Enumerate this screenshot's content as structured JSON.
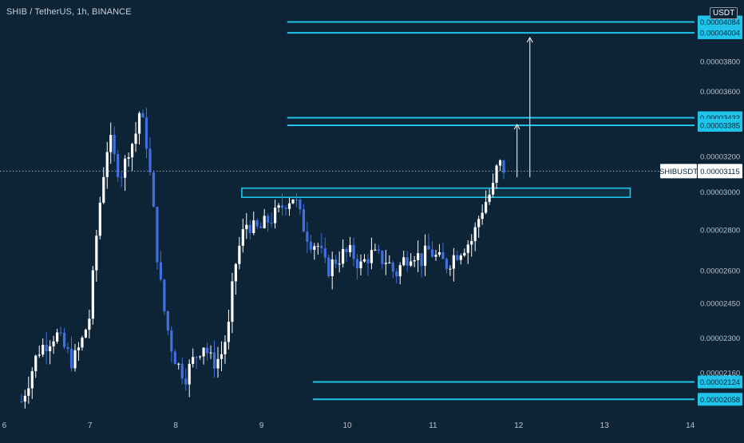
{
  "header": {
    "symbol_title": "SHIB / TetherUS, 1h, BINANCE",
    "currency": "USDT"
  },
  "colors": {
    "background": "#0c2436",
    "up_candle": "#ffffff",
    "down_candle": "#3f6fe0",
    "level_line": "#1fc4e8",
    "axis_text": "#b8c2cc",
    "arrow": "#ffffff"
  },
  "chart_data": {
    "type": "candlestick",
    "title": "SHIB / TetherUS, 1h, BINANCE",
    "x_tick_labels": [
      "6",
      "7",
      "8",
      "9",
      "10",
      "11",
      "12",
      "13",
      "14"
    ],
    "y_tick_labels": [
      "0.00002160",
      "0.00002300",
      "0.00002450",
      "0.00002600",
      "0.00002800",
      "0.00003000",
      "0.00003200",
      "0.00003600",
      "0.00003800"
    ],
    "y_tick_values": [
      2.16e-05,
      2.3e-05,
      2.45e-05,
      2.6e-05,
      2.8e-05,
      3e-05,
      3.2e-05,
      3.6e-05,
      3.8e-05
    ],
    "y_scale": "log",
    "ylim": [
      2e-05,
      4.25e-05
    ],
    "xlim": [
      5.95,
      14.05
    ],
    "current_price": {
      "symbol": "SHIBUSDT",
      "label": "0.00003115",
      "value": 3.115e-05
    },
    "horizontal_levels": [
      {
        "label": "0.00004084",
        "value": 4.084e-05,
        "x_start": 9.3
      },
      {
        "label": "0.00004004",
        "value": 4.004e-05,
        "x_start": 9.3
      },
      {
        "label": "0.00003432",
        "value": 3.432e-05,
        "x_start": 9.3
      },
      {
        "label": "0.00003385",
        "value": 3.385e-05,
        "x_start": 9.3
      },
      {
        "label": "0.00002124",
        "value": 2.124e-05,
        "x_start": 9.6
      },
      {
        "label": "0.00002058",
        "value": 2.058e-05,
        "x_start": 9.6
      }
    ],
    "resistance_zone": {
      "x_start": 8.77,
      "x_end": 13.3,
      "y_low": 2.97e-05,
      "y_high": 3.02e-05
    },
    "target_arrows": [
      {
        "x": 11.98,
        "from": 3.08e-05,
        "to": 3.39e-05
      },
      {
        "x": 12.13,
        "from": 3.08e-05,
        "to": 3.97e-05
      }
    ],
    "price_path": [
      [
        6.2,
        2.05e-05
      ],
      [
        6.4,
        2.25e-05
      ],
      [
        6.6,
        2.32e-05
      ],
      [
        6.8,
        2.2e-05
      ],
      [
        6.9,
        2.28e-05
      ],
      [
        7.0,
        2.4e-05
      ],
      [
        7.07,
        2.75e-05
      ],
      [
        7.14,
        3.05e-05
      ],
      [
        7.22,
        3.32e-05
      ],
      [
        7.3,
        3.15e-05
      ],
      [
        7.38,
        3.1e-05
      ],
      [
        7.45,
        3.25e-05
      ],
      [
        7.52,
        3.3e-05
      ],
      [
        7.58,
        3.48e-05
      ],
      [
        7.66,
        3.28e-05
      ],
      [
        7.72,
        3e-05
      ],
      [
        7.8,
        2.6e-05
      ],
      [
        7.88,
        2.38e-05
      ],
      [
        7.96,
        2.25e-05
      ],
      [
        8.04,
        2.18e-05
      ],
      [
        8.12,
        2.15e-05
      ],
      [
        8.22,
        2.22e-05
      ],
      [
        8.32,
        2.28e-05
      ],
      [
        8.42,
        2.2e-05
      ],
      [
        8.52,
        2.22e-05
      ],
      [
        8.62,
        2.35e-05
      ],
      [
        8.68,
        2.6e-05
      ],
      [
        8.76,
        2.75e-05
      ],
      [
        8.84,
        2.85e-05
      ],
      [
        8.9,
        2.8e-05
      ],
      [
        8.98,
        2.8e-05
      ],
      [
        9.08,
        2.85e-05
      ],
      [
        9.18,
        2.88e-05
      ],
      [
        9.28,
        2.95e-05
      ],
      [
        9.38,
        2.98e-05
      ],
      [
        9.46,
        2.85e-05
      ],
      [
        9.56,
        2.75e-05
      ],
      [
        9.66,
        2.72e-05
      ],
      [
        9.76,
        2.6e-05
      ],
      [
        9.86,
        2.65e-05
      ],
      [
        9.96,
        2.68e-05
      ],
      [
        10.06,
        2.68e-05
      ],
      [
        10.16,
        2.62e-05
      ],
      [
        10.26,
        2.68e-05
      ],
      [
        10.36,
        2.66e-05
      ],
      [
        10.46,
        2.65e-05
      ],
      [
        10.56,
        2.58e-05
      ],
      [
        10.66,
        2.65e-05
      ],
      [
        10.76,
        2.7e-05
      ],
      [
        10.86,
        2.65e-05
      ],
      [
        10.96,
        2.7e-05
      ],
      [
        11.06,
        2.65e-05
      ],
      [
        11.16,
        2.63e-05
      ],
      [
        11.26,
        2.68e-05
      ],
      [
        11.36,
        2.72e-05
      ],
      [
        11.46,
        2.75e-05
      ],
      [
        11.56,
        2.9e-05
      ],
      [
        11.64,
        2.97e-05
      ],
      [
        11.7,
        3.02e-05
      ],
      [
        11.74,
        3.12e-05
      ],
      [
        11.78,
        3.15e-05
      ],
      [
        11.84,
        3.12e-05
      ]
    ]
  }
}
